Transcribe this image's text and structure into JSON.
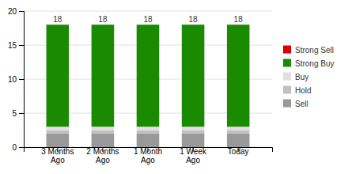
{
  "chart_data": {
    "type": "bar",
    "stacked": true,
    "categories": [
      "3 Months\nAgo",
      "2 Months\nAgo",
      "1 Month\nAgo",
      "1 Week\nAgo",
      "Today"
    ],
    "series": [
      {
        "name": "Sell",
        "color": "#999999",
        "values": [
          2,
          2,
          2,
          2,
          2
        ]
      },
      {
        "name": "Hold",
        "color": "#c0c0c0",
        "values": [
          0.5,
          0.5,
          0.5,
          0.5,
          0.5
        ]
      },
      {
        "name": "Buy",
        "color": "#e0e0e0",
        "values": [
          0.5,
          0.5,
          0.5,
          0.5,
          0.5
        ]
      },
      {
        "name": "Strong Buy",
        "color": "#1a8a00",
        "values": [
          15,
          15,
          15,
          15,
          15
        ]
      },
      {
        "name": "Strong Sell",
        "color": "#dd0000",
        "values": [
          0,
          0,
          0,
          0,
          0
        ]
      }
    ],
    "totals": [
      18,
      18,
      18,
      18,
      18
    ],
    "ylim": [
      0,
      20
    ],
    "yticks": [
      0,
      5,
      10,
      15,
      20
    ],
    "grid": true
  }
}
